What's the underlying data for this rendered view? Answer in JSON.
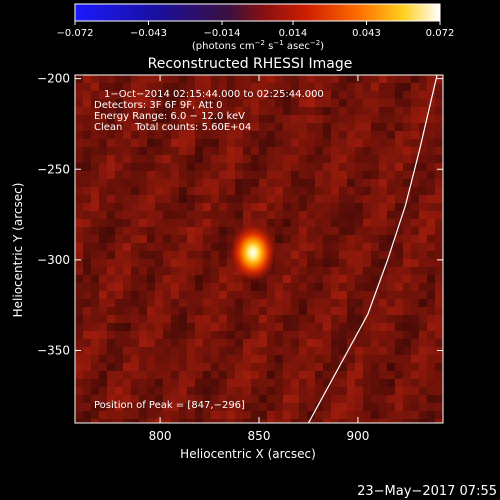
{
  "chart_data": {
    "type": "heatmap",
    "title": "Reconstructed RHESSI Image",
    "xlabel": "Heliocentric X (arcsec)",
    "ylabel": "Heliocentric Y (arcsec)",
    "xlim": [
      757,
      943
    ],
    "ylim": [
      -390,
      -198
    ],
    "x_ticks": [
      {
        "value": 800,
        "label": "800"
      },
      {
        "value": 850,
        "label": "850"
      },
      {
        "value": 900,
        "label": "900"
      }
    ],
    "y_ticks": [
      {
        "value": -200,
        "label": "−200"
      },
      {
        "value": -250,
        "label": "−250"
      },
      {
        "value": -300,
        "label": "−300"
      },
      {
        "value": -350,
        "label": "−350"
      }
    ],
    "colorbar": {
      "range": [
        -0.072,
        0.072
      ],
      "ticks": [
        {
          "value": -0.072,
          "label": "−0.072"
        },
        {
          "value": -0.043,
          "label": "−0.043"
        },
        {
          "value": -0.014,
          "label": "−0.014"
        },
        {
          "value": 0.014,
          "label": "0.014"
        },
        {
          "value": 0.043,
          "label": "0.043"
        },
        {
          "value": 0.072,
          "label": "0.072"
        }
      ],
      "label_parts": [
        "(photons cm",
        "−2",
        " s",
        "−1",
        " asec",
        "−2",
        ")"
      ],
      "colormap": "blue-black-red-orange-yellow-white"
    },
    "annotations": {
      "time": "1−Oct−2014 02:15:44.000 to 02:25:44.000",
      "detectors": "Detectors: 3F 6F 9F, Att 0",
      "energy": "Energy Range: 6.0 − 12.0 keV",
      "clean": "Clean    Total counts: 5.60E+04",
      "peak": "Position of Peak = [847,−296]"
    },
    "source": {
      "x": 847,
      "y": -296,
      "peak": 0.072
    },
    "limb_curve": [
      [
        875,
        -390
      ],
      [
        890,
        -360
      ],
      [
        905,
        -330
      ],
      [
        915,
        -300
      ],
      [
        924,
        -270
      ],
      [
        931,
        -240
      ],
      [
        937,
        -212
      ],
      [
        940,
        -198
      ]
    ]
  },
  "footer": {
    "date": "23−May−2017 07:55"
  }
}
